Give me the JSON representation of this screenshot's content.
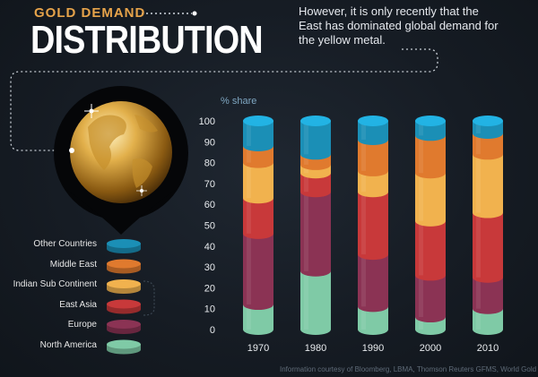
{
  "header": {
    "supertitle": "GOLD DEMAND",
    "title": "DISTRIBUTION",
    "note": "However, it is only recently that the East has dominated global demand for the yellow metal."
  },
  "credit": "Information courtesy of Bloomberg, LBMA, Thomson Reuters GFMS, World Gold Council",
  "colors": {
    "Other Countries": "#1b8fb6",
    "Middle East": "#e07a2e",
    "Indian Sub Continent": "#f1b24e",
    "East Asia": "#c8393a",
    "Europe": "#8b3354",
    "North America": "#7fcaa6",
    "accent": "#e6a34a",
    "background": "#161c24"
  },
  "chart_data": {
    "type": "bar",
    "stacked": true,
    "title": "",
    "xlabel": "",
    "ylabel": "% share",
    "ylim": [
      0,
      100
    ],
    "yticks": [
      0,
      10,
      20,
      30,
      40,
      50,
      60,
      70,
      80,
      90,
      100
    ],
    "categories": [
      "1970",
      "1980",
      "1990",
      "2000",
      "2010"
    ],
    "series": [
      {
        "name": "North America",
        "values": [
          12,
          28,
          11,
          6,
          10
        ]
      },
      {
        "name": "Europe",
        "values": [
          34,
          38,
          25,
          20,
          15
        ]
      },
      {
        "name": "East Asia",
        "values": [
          17,
          9,
          30,
          26,
          31
        ]
      },
      {
        "name": "Indian Sub Continent",
        "values": [
          17,
          4,
          10,
          23,
          28
        ]
      },
      {
        "name": "Middle East",
        "values": [
          8,
          5,
          15,
          18,
          10
        ]
      },
      {
        "name": "Other Countries",
        "values": [
          12,
          16,
          9,
          7,
          6
        ]
      }
    ],
    "legend": {
      "placement": "left",
      "order": [
        "Other Countries",
        "Middle East",
        "Indian Sub Continent",
        "East Asia",
        "Europe",
        "North America"
      ]
    },
    "grid": false
  }
}
